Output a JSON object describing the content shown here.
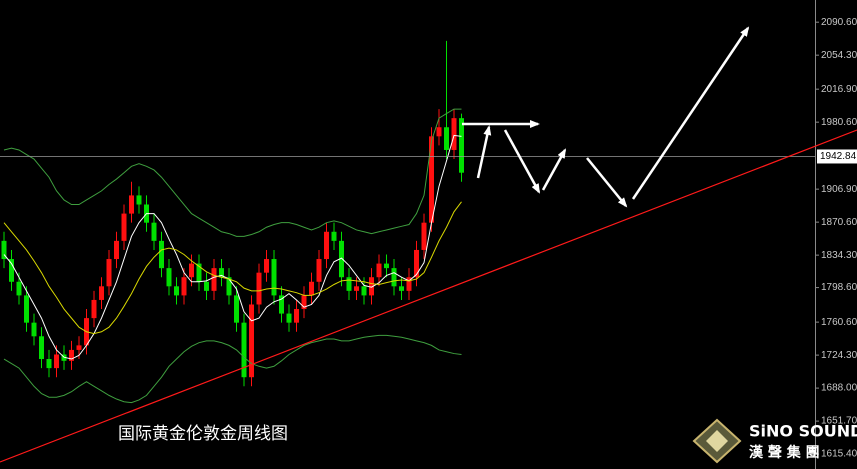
{
  "chart_data": {
    "type": "candlestick",
    "title": "国际黄金伦敦金周线图",
    "logo": {
      "name": "SiNO SOUND",
      "subtitle": "漢 聲 集 團"
    },
    "open": [
      1850,
      1830,
      1805,
      1790,
      1760,
      1745,
      1720,
      1710,
      1725,
      1718,
      1730,
      1735,
      1765,
      1785,
      1800,
      1830,
      1850,
      1880,
      1900,
      1890,
      1870,
      1850,
      1820,
      1800,
      1790,
      1810,
      1825,
      1805,
      1795,
      1820,
      1810,
      1790,
      1760,
      1700,
      1780,
      1815,
      1830,
      1790,
      1770,
      1760,
      1775,
      1790,
      1805,
      1830,
      1860,
      1850,
      1810,
      1795,
      1800,
      1790,
      1810,
      1825,
      1820,
      1800,
      1795,
      1810,
      1840,
      1870,
      1965,
      1975,
      1950,
      1985
    ],
    "high": [
      1860,
      1840,
      1815,
      1800,
      1770,
      1755,
      1730,
      1735,
      1735,
      1740,
      1745,
      1775,
      1795,
      1810,
      1840,
      1860,
      1890,
      1915,
      1910,
      1900,
      1880,
      1860,
      1830,
      1810,
      1820,
      1835,
      1835,
      1815,
      1830,
      1830,
      1820,
      1800,
      1770,
      1790,
      1825,
      1840,
      1840,
      1800,
      1780,
      1785,
      1800,
      1815,
      1840,
      1870,
      1870,
      1860,
      1820,
      1810,
      1810,
      1820,
      1835,
      1835,
      1830,
      1810,
      1820,
      1850,
      1880,
      1975,
      1995,
      2070,
      1995,
      1990
    ],
    "low": [
      1820,
      1795,
      1780,
      1750,
      1735,
      1710,
      1700,
      1700,
      1708,
      1708,
      1720,
      1725,
      1755,
      1775,
      1790,
      1820,
      1840,
      1870,
      1880,
      1860,
      1840,
      1810,
      1790,
      1780,
      1780,
      1800,
      1795,
      1785,
      1785,
      1800,
      1780,
      1750,
      1690,
      1690,
      1770,
      1805,
      1780,
      1760,
      1750,
      1750,
      1765,
      1780,
      1795,
      1820,
      1840,
      1800,
      1785,
      1785,
      1780,
      1780,
      1800,
      1810,
      1790,
      1785,
      1785,
      1800,
      1830,
      1860,
      1955,
      1940,
      1940,
      1915
    ],
    "close": [
      1830,
      1805,
      1790,
      1760,
      1745,
      1720,
      1710,
      1725,
      1718,
      1730,
      1735,
      1765,
      1785,
      1800,
      1830,
      1850,
      1880,
      1900,
      1890,
      1870,
      1850,
      1820,
      1800,
      1790,
      1810,
      1825,
      1805,
      1795,
      1820,
      1810,
      1790,
      1760,
      1700,
      1780,
      1815,
      1830,
      1790,
      1770,
      1760,
      1775,
      1790,
      1805,
      1830,
      1860,
      1850,
      1810,
      1795,
      1800,
      1790,
      1810,
      1825,
      1820,
      1800,
      1795,
      1810,
      1840,
      1870,
      1965,
      1975,
      1950,
      1985,
      1925
    ],
    "up_color": "#ff1010",
    "down_color": "#00e000",
    "lines": [
      {
        "color": "#3f9f3f",
        "values": [
          1950,
          1952,
          1950,
          1945,
          1940,
          1930,
          1920,
          1905,
          1895,
          1890,
          1890,
          1895,
          1900,
          1905,
          1912,
          1918,
          1925,
          1932,
          1935,
          1932,
          1928,
          1920,
          1910,
          1900,
          1890,
          1880,
          1875,
          1870,
          1865,
          1860,
          1858,
          1855,
          1855,
          1857,
          1860,
          1865,
          1868,
          1870,
          1870,
          1868,
          1865,
          1862,
          1865,
          1870,
          1872,
          1870,
          1866,
          1862,
          1860,
          1858,
          1860,
          1862,
          1864,
          1866,
          1868,
          1880,
          1900,
          1960,
          1985,
          1990,
          1995,
          1995
        ]
      },
      {
        "color": "#3f9f3f",
        "values": [
          1720,
          1715,
          1710,
          1700,
          1690,
          1682,
          1678,
          1678,
          1680,
          1684,
          1690,
          1695,
          1690,
          1685,
          1680,
          1676,
          1673,
          1672,
          1675,
          1680,
          1690,
          1700,
          1712,
          1720,
          1728,
          1734,
          1738,
          1740,
          1740,
          1738,
          1735,
          1730,
          1722,
          1715,
          1712,
          1710,
          1712,
          1718,
          1725,
          1730,
          1735,
          1738,
          1740,
          1742,
          1742,
          1740,
          1740,
          1742,
          1744,
          1745,
          1746,
          1746,
          1745,
          1744,
          1742,
          1740,
          1738,
          1735,
          1730,
          1728,
          1726,
          1725
        ]
      },
      {
        "color": "#ffffff",
        "values": [
          1835,
          1825,
          1810,
          1795,
          1780,
          1765,
          1745,
          1730,
          1722,
          1720,
          1724,
          1735,
          1748,
          1765,
          1785,
          1805,
          1830,
          1855,
          1870,
          1880,
          1880,
          1870,
          1852,
          1835,
          1815,
          1805,
          1805,
          1806,
          1810,
          1812,
          1808,
          1797,
          1772,
          1762,
          1765,
          1777,
          1783,
          1786,
          1792,
          1785,
          1777,
          1780,
          1790,
          1812,
          1827,
          1831,
          1823,
          1812,
          1801,
          1799,
          1804,
          1812,
          1815,
          1810,
          1806,
          1813,
          1826,
          1870,
          1910,
          1938,
          1966,
          1965
        ]
      },
      {
        "color": "#d8d800",
        "values": [
          1870,
          1860,
          1850,
          1840,
          1828,
          1815,
          1800,
          1788,
          1775,
          1765,
          1755,
          1750,
          1748,
          1750,
          1755,
          1765,
          1778,
          1792,
          1808,
          1822,
          1832,
          1840,
          1842,
          1840,
          1835,
          1828,
          1822,
          1816,
          1812,
          1810,
          1808,
          1805,
          1798,
          1795,
          1795,
          1797,
          1798,
          1797,
          1795,
          1793,
          1790,
          1790,
          1793,
          1797,
          1802,
          1806,
          1807,
          1806,
          1805,
          1803,
          1802,
          1804,
          1806,
          1807,
          1806,
          1808,
          1815,
          1832,
          1850,
          1865,
          1882,
          1893
        ]
      }
    ],
    "current_price": 1942.84,
    "ylim": [
      1599,
      2115
    ],
    "yticks": [
      {
        "value": 2090.6,
        "label": "2090.60"
      },
      {
        "value": 2054.3,
        "label": "2054.30"
      },
      {
        "value": 2016.9,
        "label": "2016.90"
      },
      {
        "value": 1980.6,
        "label": "1980.60"
      },
      {
        "value": 1906.9,
        "label": "1906.90"
      },
      {
        "value": 1870.6,
        "label": "1870.60"
      },
      {
        "value": 1834.3,
        "label": "1834.30"
      },
      {
        "value": 1798.6,
        "label": "1798.60"
      },
      {
        "value": 1760.6,
        "label": "1760.60"
      },
      {
        "value": 1724.3,
        "label": "1724.30"
      },
      {
        "value": 1688,
        "label": "1688.00"
      },
      {
        "value": 1651.7,
        "label": "1651.70"
      },
      {
        "value": 1615.4,
        "label": "1615.40"
      }
    ]
  }
}
